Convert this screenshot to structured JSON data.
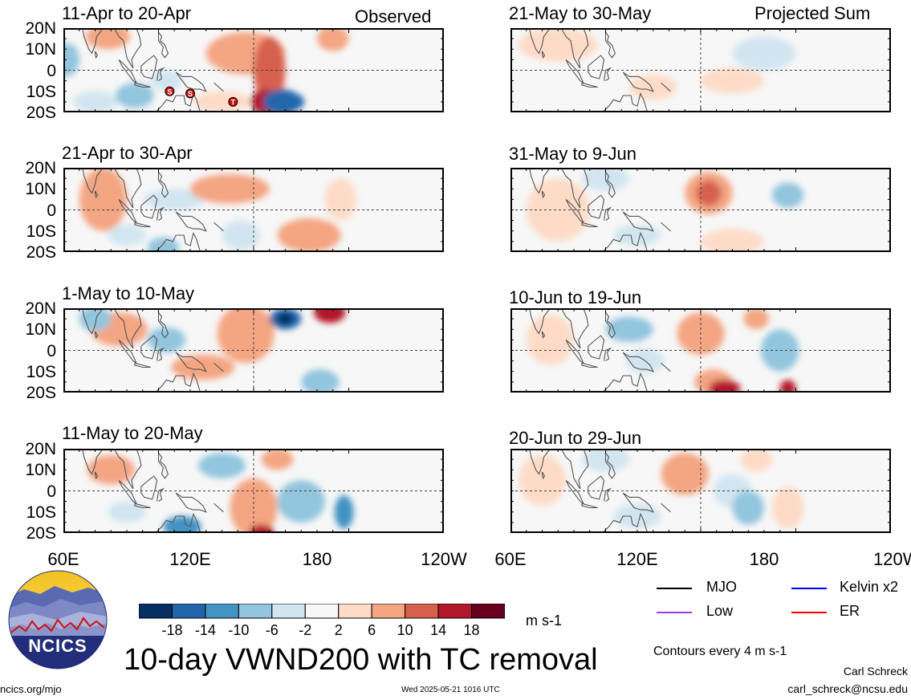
{
  "panels": [
    {
      "id": "p0",
      "title": "11-Apr to 20-Apr",
      "tag": "Observed",
      "col": 0,
      "row": 0
    },
    {
      "id": "p1",
      "title": "21-Apr to 30-Apr",
      "tag": "",
      "col": 0,
      "row": 1
    },
    {
      "id": "p2",
      "title": "1-May to 10-May",
      "tag": "",
      "col": 0,
      "row": 2
    },
    {
      "id": "p3",
      "title": "11-May to 20-May",
      "tag": "",
      "col": 0,
      "row": 3
    },
    {
      "id": "p4",
      "title": "21-May to 30-May",
      "tag": "Projected Sum",
      "col": 1,
      "row": 0
    },
    {
      "id": "p5",
      "title": "31-May to 9-Jun",
      "tag": "",
      "col": 1,
      "row": 1
    },
    {
      "id": "p6",
      "title": "10-Jun to 19-Jun",
      "tag": "",
      "col": 1,
      "row": 2
    },
    {
      "id": "p7",
      "title": "20-Jun to 29-Jun",
      "tag": "",
      "col": 1,
      "row": 3
    }
  ],
  "y_tick_labels": [
    "20N",
    "10N",
    "0",
    "10S",
    "20S"
  ],
  "x_tick_labels": [
    "60E",
    "120E",
    "180",
    "120W"
  ],
  "tc_markers": [
    {
      "panel": "p0",
      "symbol": "S",
      "lon": 127,
      "lat": -10
    },
    {
      "panel": "p0",
      "symbol": "S",
      "lon": 140,
      "lat": -11
    },
    {
      "panel": "p0",
      "symbol": "T",
      "lon": 167,
      "lat": -15
    }
  ],
  "colorbar": {
    "levels": [
      "-18",
      "-14",
      "-10",
      "-6",
      "-2",
      "2",
      "6",
      "10",
      "14",
      "18"
    ],
    "colors": [
      "#053061",
      "#2166ac",
      "#4393c3",
      "#92c5de",
      "#d1e5f0",
      "#f7f7f7",
      "#fddbc7",
      "#f4a582",
      "#d6604d",
      "#b2182b",
      "#67001f"
    ],
    "units": "m s-1"
  },
  "legend": [
    {
      "label": "MJO",
      "color": "#000000"
    },
    {
      "label": "Kelvin x2",
      "color": "#0000ff"
    },
    {
      "label": "Low",
      "color": "#a040e0"
    },
    {
      "label": "ER",
      "color": "#ff0000"
    }
  ],
  "contour_note": "Contours every 4 m s-1",
  "main_title": "10-day VWND200 with TC removal",
  "logo_text": "NCICS",
  "footer": {
    "left": "ncics.org/mjo",
    "center": "Wed 2025-05-21 1016 UTC",
    "author": "Carl Schreck",
    "email": "carl_schreck@ncsu.edu"
  }
}
